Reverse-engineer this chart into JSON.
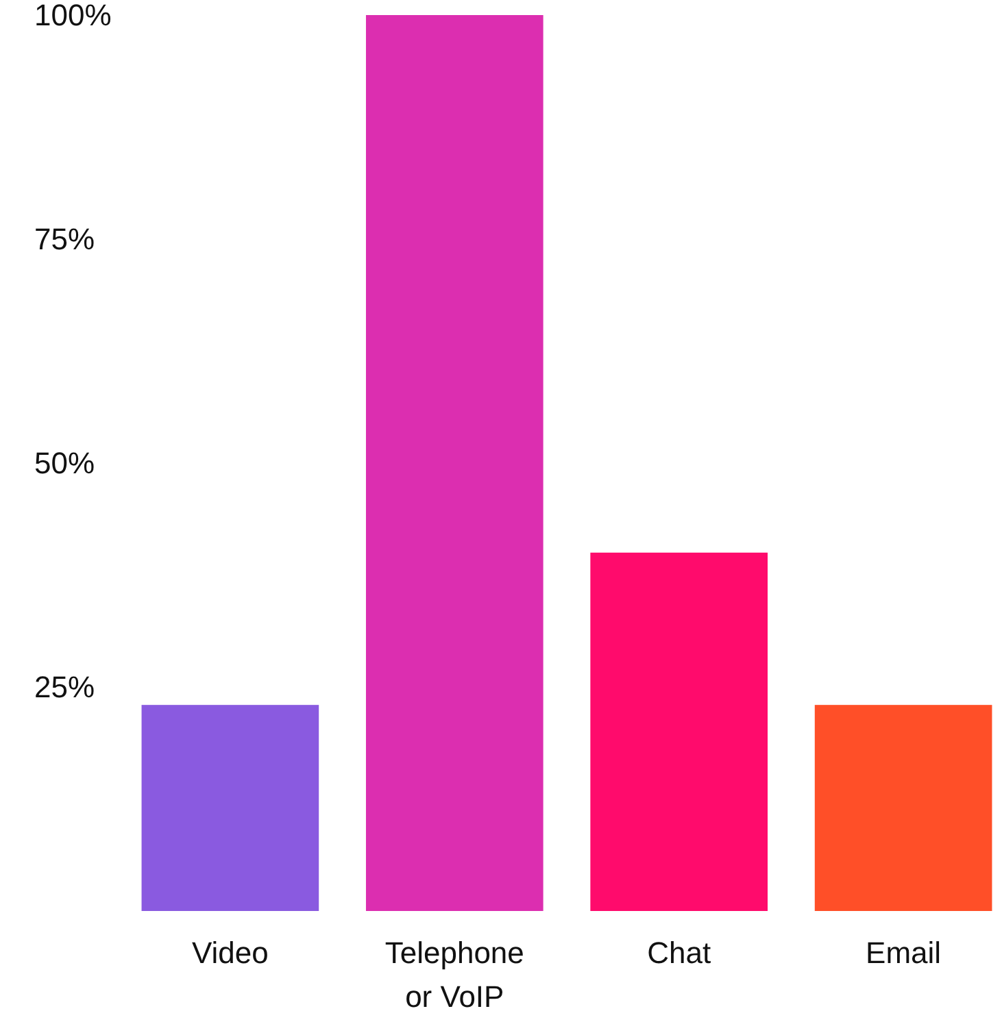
{
  "chart_data": {
    "type": "bar",
    "categories": [
      "Video",
      "Telephone or VoIP",
      "Chat",
      "Email"
    ],
    "values": [
      23,
      100,
      40,
      23
    ],
    "colors": [
      "#8a5ae0",
      "#dc2eb0",
      "#ff0b6c",
      "#ff4f28"
    ],
    "ylim": [
      0,
      100
    ],
    "yticks": [
      {
        "value": 25,
        "label": "25%"
      },
      {
        "value": 50,
        "label": "50%"
      },
      {
        "value": 75,
        "label": "75%"
      },
      {
        "value": 100,
        "label": "100%"
      }
    ],
    "grid": false
  }
}
